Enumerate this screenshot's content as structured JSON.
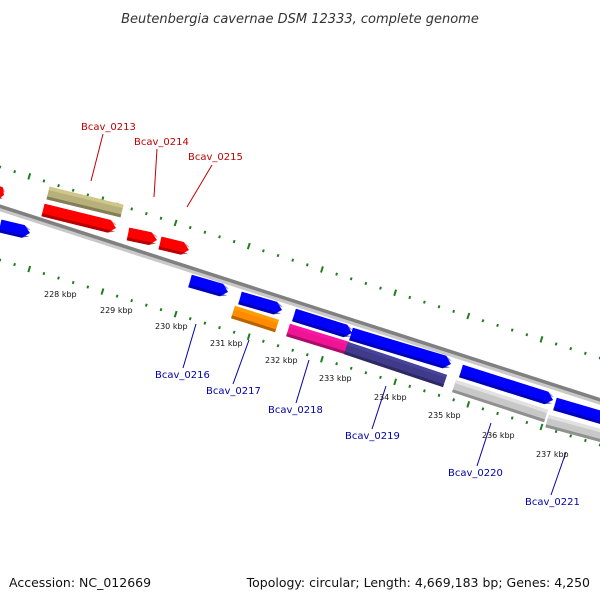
{
  "title": "Beutenbergia cavernae DSM 12333, complete genome",
  "footer": {
    "accession": "Accession: NC_012669",
    "summary": "Topology: circular; Length: 4,669,183 bp; Genes: 4,250"
  },
  "colors": {
    "backbone": "#8a8a8a",
    "tick": "#1e7d1e",
    "forward_label": "#c00000",
    "reverse_label": "#0000aa",
    "red": "#ff0000",
    "blue": "#0000ff",
    "khaki": "#b8b07a",
    "orange": "#ff8c00",
    "magenta": "#ee1493",
    "slate": "#3f3a8a",
    "grey": "#c8c8c8"
  },
  "kbp_ticks": [
    "228 kbp",
    "229 kbp",
    "230 kbp",
    "231 kbp",
    "232 kbp",
    "233 kbp",
    "234 kbp",
    "235 kbp",
    "236 kbp",
    "237 kbp"
  ],
  "forward_labels": [
    {
      "text": "Bcav_0213"
    },
    {
      "text": "Bcav_0214"
    },
    {
      "text": "Bcav_0215"
    }
  ],
  "reverse_labels": [
    {
      "text": "Bcav_0216"
    },
    {
      "text": "Bcav_0217"
    },
    {
      "text": "Bcav_0218"
    },
    {
      "text": "Bcav_0219"
    },
    {
      "text": "Bcav_0220"
    },
    {
      "text": "Bcav_0221"
    }
  ],
  "features": [
    {
      "strand": "forward",
      "color": "red",
      "arrow": true
    },
    {
      "strand": "forward",
      "color": "khaki",
      "arrow": false
    },
    {
      "strand": "forward",
      "color": "red",
      "arrow": true
    },
    {
      "strand": "forward",
      "color": "red",
      "arrow": true
    },
    {
      "strand": "forward",
      "color": "red",
      "arrow": true
    },
    {
      "strand": "reverse",
      "color": "blue",
      "arrow": true
    },
    {
      "strand": "reverse",
      "color": "blue",
      "arrow": true
    },
    {
      "strand": "reverse",
      "color": "blue",
      "arrow": true
    },
    {
      "strand": "reverse",
      "color": "orange",
      "arrow": false
    },
    {
      "strand": "reverse",
      "color": "blue",
      "arrow": true
    },
    {
      "strand": "reverse",
      "color": "magenta",
      "arrow": false
    },
    {
      "strand": "reverse",
      "color": "blue",
      "arrow": true
    },
    {
      "strand": "reverse",
      "color": "slate",
      "arrow": false
    },
    {
      "strand": "reverse",
      "color": "blue",
      "arrow": true
    },
    {
      "strand": "reverse",
      "color": "grey",
      "arrow": false
    },
    {
      "strand": "reverse",
      "color": "blue",
      "arrow": true
    },
    {
      "strand": "reverse",
      "color": "grey",
      "arrow": false
    }
  ]
}
